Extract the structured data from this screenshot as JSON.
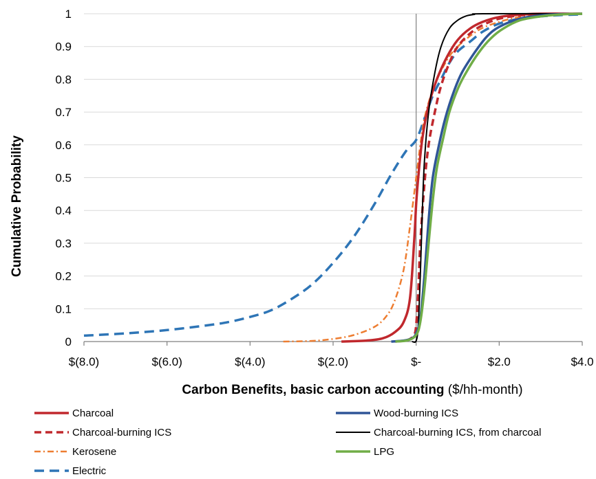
{
  "chart_data": {
    "type": "line",
    "title": "",
    "xlabel_bold": "Carbon Benefits, basic carbon accounting",
    "xlabel_rest": " ($/hh-month)",
    "ylabel": "Cumulative Probability",
    "xlim": [
      -8.0,
      4.0
    ],
    "ylim": [
      0,
      1
    ],
    "grid": "horizontal",
    "legend_placement": "bottom",
    "x_ticks": [
      {
        "value": -8,
        "label": "$(8.0)"
      },
      {
        "value": -6,
        "label": "$(6.0)"
      },
      {
        "value": -4,
        "label": "$(4.0)"
      },
      {
        "value": -2,
        "label": "$(2.0)"
      },
      {
        "value": 0,
        "label": "$-"
      },
      {
        "value": 2,
        "label": "$2.0"
      },
      {
        "value": 4,
        "label": "$4.0"
      }
    ],
    "y_ticks": [
      {
        "value": 0,
        "label": "0"
      },
      {
        "value": 0.1,
        "label": "0.1"
      },
      {
        "value": 0.2,
        "label": "0.2"
      },
      {
        "value": 0.3,
        "label": "0.3"
      },
      {
        "value": 0.4,
        "label": "0.4"
      },
      {
        "value": 0.5,
        "label": "0.5"
      },
      {
        "value": 0.6,
        "label": "0.6"
      },
      {
        "value": 0.7,
        "label": "0.7"
      },
      {
        "value": 0.8,
        "label": "0.8"
      },
      {
        "value": 0.9,
        "label": "0.9"
      },
      {
        "value": 1,
        "label": "1"
      }
    ],
    "series": [
      {
        "name": "Electric",
        "color": "#2e75b6",
        "dash": "long-dash",
        "points": [
          [
            -8.0,
            0.018
          ],
          [
            -7.0,
            0.025
          ],
          [
            -6.0,
            0.035
          ],
          [
            -5.0,
            0.05
          ],
          [
            -4.5,
            0.06
          ],
          [
            -4.0,
            0.075
          ],
          [
            -3.5,
            0.095
          ],
          [
            -3.0,
            0.13
          ],
          [
            -2.5,
            0.175
          ],
          [
            -2.0,
            0.24
          ],
          [
            -1.5,
            0.32
          ],
          [
            -1.0,
            0.42
          ],
          [
            -0.6,
            0.51
          ],
          [
            -0.25,
            0.58
          ],
          [
            0.0,
            0.615
          ],
          [
            0.2,
            0.68
          ],
          [
            0.4,
            0.75
          ],
          [
            0.6,
            0.8
          ],
          [
            0.8,
            0.85
          ],
          [
            1.0,
            0.885
          ],
          [
            1.3,
            0.915
          ],
          [
            1.6,
            0.945
          ],
          [
            2.0,
            0.97
          ],
          [
            2.5,
            0.985
          ],
          [
            3.0,
            0.992
          ],
          [
            3.5,
            0.996
          ],
          [
            4.0,
            0.998
          ]
        ]
      },
      {
        "name": "Kerosene",
        "color": "#ed7d31",
        "dash": "dash-dot",
        "points": [
          [
            -3.2,
            0.0
          ],
          [
            -2.5,
            0.002
          ],
          [
            -2.0,
            0.008
          ],
          [
            -1.5,
            0.02
          ],
          [
            -1.0,
            0.045
          ],
          [
            -0.7,
            0.08
          ],
          [
            -0.5,
            0.13
          ],
          [
            -0.3,
            0.22
          ],
          [
            -0.15,
            0.35
          ],
          [
            0.0,
            0.5
          ],
          [
            0.1,
            0.6
          ],
          [
            0.2,
            0.68
          ],
          [
            0.35,
            0.75
          ],
          [
            0.5,
            0.8
          ],
          [
            0.75,
            0.86
          ],
          [
            1.0,
            0.9
          ],
          [
            1.5,
            0.95
          ],
          [
            2.0,
            0.975
          ],
          [
            2.5,
            0.99
          ],
          [
            3.0,
            0.996
          ],
          [
            4.0,
            1.0
          ]
        ]
      },
      {
        "name": "Charcoal",
        "color": "#c0282d",
        "dash": "solid",
        "points": [
          [
            -1.8,
            0.0
          ],
          [
            -1.2,
            0.003
          ],
          [
            -0.8,
            0.01
          ],
          [
            -0.5,
            0.03
          ],
          [
            -0.3,
            0.06
          ],
          [
            -0.15,
            0.13
          ],
          [
            -0.05,
            0.3
          ],
          [
            0.0,
            0.42
          ],
          [
            0.05,
            0.5
          ],
          [
            0.15,
            0.62
          ],
          [
            0.3,
            0.72
          ],
          [
            0.5,
            0.8
          ],
          [
            0.75,
            0.87
          ],
          [
            1.0,
            0.92
          ],
          [
            1.3,
            0.955
          ],
          [
            1.6,
            0.975
          ],
          [
            2.0,
            0.99
          ],
          [
            2.5,
            0.997
          ],
          [
            3.0,
            1.0
          ],
          [
            4.0,
            1.0
          ]
        ]
      },
      {
        "name": "Charcoal-burning ICS",
        "color": "#c0282d",
        "dash": "medium-dash",
        "points": [
          [
            -0.5,
            0.0
          ],
          [
            -0.2,
            0.005
          ],
          [
            -0.05,
            0.02
          ],
          [
            0.0,
            0.05
          ],
          [
            0.05,
            0.15
          ],
          [
            0.1,
            0.3
          ],
          [
            0.2,
            0.48
          ],
          [
            0.3,
            0.6
          ],
          [
            0.45,
            0.7
          ],
          [
            0.6,
            0.78
          ],
          [
            0.8,
            0.85
          ],
          [
            1.0,
            0.9
          ],
          [
            1.3,
            0.94
          ],
          [
            1.6,
            0.965
          ],
          [
            2.0,
            0.985
          ],
          [
            2.5,
            0.995
          ],
          [
            3.0,
            0.999
          ],
          [
            4.0,
            1.0
          ]
        ]
      },
      {
        "name": "Charcoal-burning ICS, from charcoal",
        "color": "#000000",
        "dash": "thin",
        "points": [
          [
            -0.1,
            0.0
          ],
          [
            0.0,
            0.002
          ],
          [
            0.05,
            0.05
          ],
          [
            0.1,
            0.2
          ],
          [
            0.15,
            0.4
          ],
          [
            0.2,
            0.55
          ],
          [
            0.3,
            0.7
          ],
          [
            0.45,
            0.82
          ],
          [
            0.6,
            0.9
          ],
          [
            0.8,
            0.955
          ],
          [
            1.0,
            0.98
          ],
          [
            1.2,
            0.993
          ],
          [
            1.4,
            0.998
          ],
          [
            1.6,
            1.0
          ],
          [
            4.0,
            1.0
          ]
        ]
      },
      {
        "name": "Wood-burning ICS",
        "color": "#2f5597",
        "dash": "solid",
        "points": [
          [
            -0.6,
            0.0
          ],
          [
            -0.3,
            0.003
          ],
          [
            -0.1,
            0.01
          ],
          [
            0.0,
            0.025
          ],
          [
            0.1,
            0.07
          ],
          [
            0.2,
            0.2
          ],
          [
            0.3,
            0.37
          ],
          [
            0.4,
            0.5
          ],
          [
            0.55,
            0.6
          ],
          [
            0.7,
            0.68
          ],
          [
            0.9,
            0.76
          ],
          [
            1.1,
            0.82
          ],
          [
            1.4,
            0.88
          ],
          [
            1.7,
            0.93
          ],
          [
            2.0,
            0.96
          ],
          [
            2.5,
            0.985
          ],
          [
            3.0,
            0.995
          ],
          [
            3.5,
            0.999
          ],
          [
            4.0,
            1.0
          ]
        ]
      },
      {
        "name": "LPG",
        "color": "#70ad47",
        "dash": "solid",
        "points": [
          [
            -0.5,
            0.0
          ],
          [
            -0.2,
            0.004
          ],
          [
            0.0,
            0.02
          ],
          [
            0.1,
            0.06
          ],
          [
            0.2,
            0.16
          ],
          [
            0.3,
            0.3
          ],
          [
            0.4,
            0.43
          ],
          [
            0.5,
            0.53
          ],
          [
            0.65,
            0.62
          ],
          [
            0.8,
            0.7
          ],
          [
            1.0,
            0.77
          ],
          [
            1.2,
            0.82
          ],
          [
            1.5,
            0.88
          ],
          [
            1.8,
            0.925
          ],
          [
            2.1,
            0.955
          ],
          [
            2.5,
            0.98
          ],
          [
            3.0,
            0.992
          ],
          [
            3.5,
            0.998
          ],
          [
            4.0,
            1.0
          ]
        ]
      }
    ],
    "legend": [
      {
        "name": "Charcoal",
        "color": "#c0282d",
        "dash": "solid",
        "col": 0,
        "row": 0
      },
      {
        "name": "Wood-burning ICS",
        "color": "#2f5597",
        "dash": "solid",
        "col": 1,
        "row": 0
      },
      {
        "name": "Charcoal-burning ICS",
        "color": "#c0282d",
        "dash": "medium-dash",
        "col": 0,
        "row": 1
      },
      {
        "name": "Charcoal-burning ICS, from charcoal",
        "color": "#000000",
        "dash": "thin",
        "col": 1,
        "row": 1
      },
      {
        "name": "Kerosene",
        "color": "#ed7d31",
        "dash": "dash-dot",
        "col": 0,
        "row": 2
      },
      {
        "name": "LPG",
        "color": "#70ad47",
        "dash": "solid",
        "col": 1,
        "row": 2
      },
      {
        "name": "Electric",
        "color": "#2e75b6",
        "dash": "long-dash",
        "col": 0,
        "row": 3
      }
    ]
  }
}
